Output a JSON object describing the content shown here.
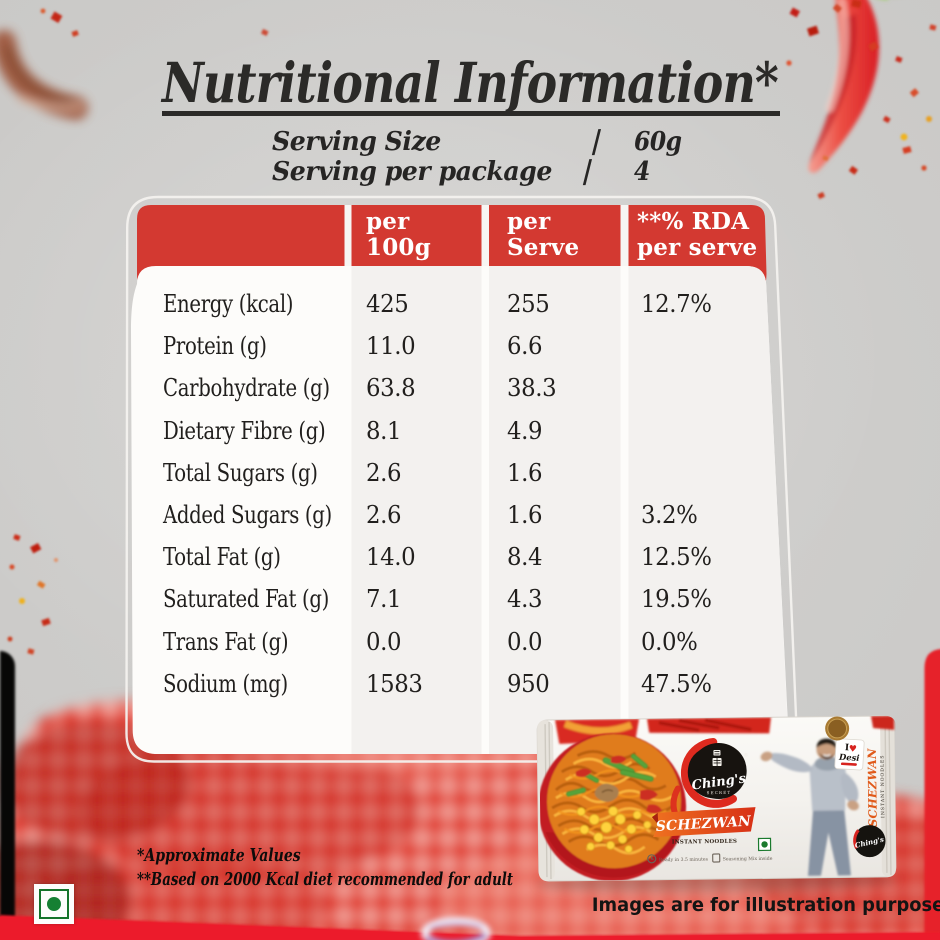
{
  "title": "Nutritional Information*",
  "serving": {
    "size_label": "Serving Size",
    "size_sep": "|",
    "size_value": "60g",
    "pkg_label": "Serving per package",
    "pkg_sep": "|",
    "pkg_value": "4"
  },
  "table": {
    "headers": {
      "col2": "per\n100g",
      "col3": "per\nServe",
      "col4": "**% RDA\nper serve"
    },
    "rows": [
      {
        "label": "Energy (kcal)",
        "per100": "425",
        "serve": "255",
        "rda": "12.7%"
      },
      {
        "label": "Protein (g)",
        "per100": "11.0",
        "serve": "6.6",
        "rda": ""
      },
      {
        "label": "Carbohydrate (g)",
        "per100": "63.8",
        "serve": "38.3",
        "rda": ""
      },
      {
        "label": "Dietary Fibre (g)",
        "per100": "8.1",
        "serve": "4.9",
        "rda": ""
      },
      {
        "label": "Total Sugars (g)",
        "per100": "2.6",
        "serve": "1.6",
        "rda": ""
      },
      {
        "label": "Added Sugars (g)",
        "per100": "2.6",
        "serve": "1.6",
        "rda": "3.2%"
      },
      {
        "label": "Total Fat (g)",
        "per100": "14.0",
        "serve": "8.4",
        "rda": "12.5%"
      },
      {
        "label": "Saturated Fat (g)",
        "per100": "7.1",
        "serve": "4.3",
        "rda": "19.5%"
      },
      {
        "label": "Trans Fat (g)",
        "per100": "0.0",
        "serve": "0.0",
        "rda": "0.0%"
      },
      {
        "label": "Sodium (mg)",
        "per100": "1583",
        "serve": "950",
        "rda": "47.5%"
      }
    ]
  },
  "footnotes": {
    "line1": "*Approximate Values",
    "line2": "**Based on 2000 Kcal diet recommended for adult"
  },
  "disclaimer": "Images are for illustration purpose",
  "package": {
    "brand": "Ching's",
    "brand_sub": "SECRET",
    "variant": "SCHEZWAN",
    "product_type": "INSTANT NOODLES",
    "badge_i": "I",
    "badge_heart": "♥",
    "brand_reg": "®",
    "badge_line2": "Desi",
    "side_text": "SCHEZWAN",
    "side_sub": "INSTANT NOODLES",
    "note1": "Ready in 3.5 minutes",
    "note2": "Seasoning Mix inside",
    "bottom_logo": "Ching's"
  },
  "colors": {
    "header_red": "#d33931",
    "banner_orange": "#e8541f",
    "bright_red_band": "#ec1b2b",
    "cloth_red": "#e94a3b",
    "veg_green": "#158033"
  }
}
